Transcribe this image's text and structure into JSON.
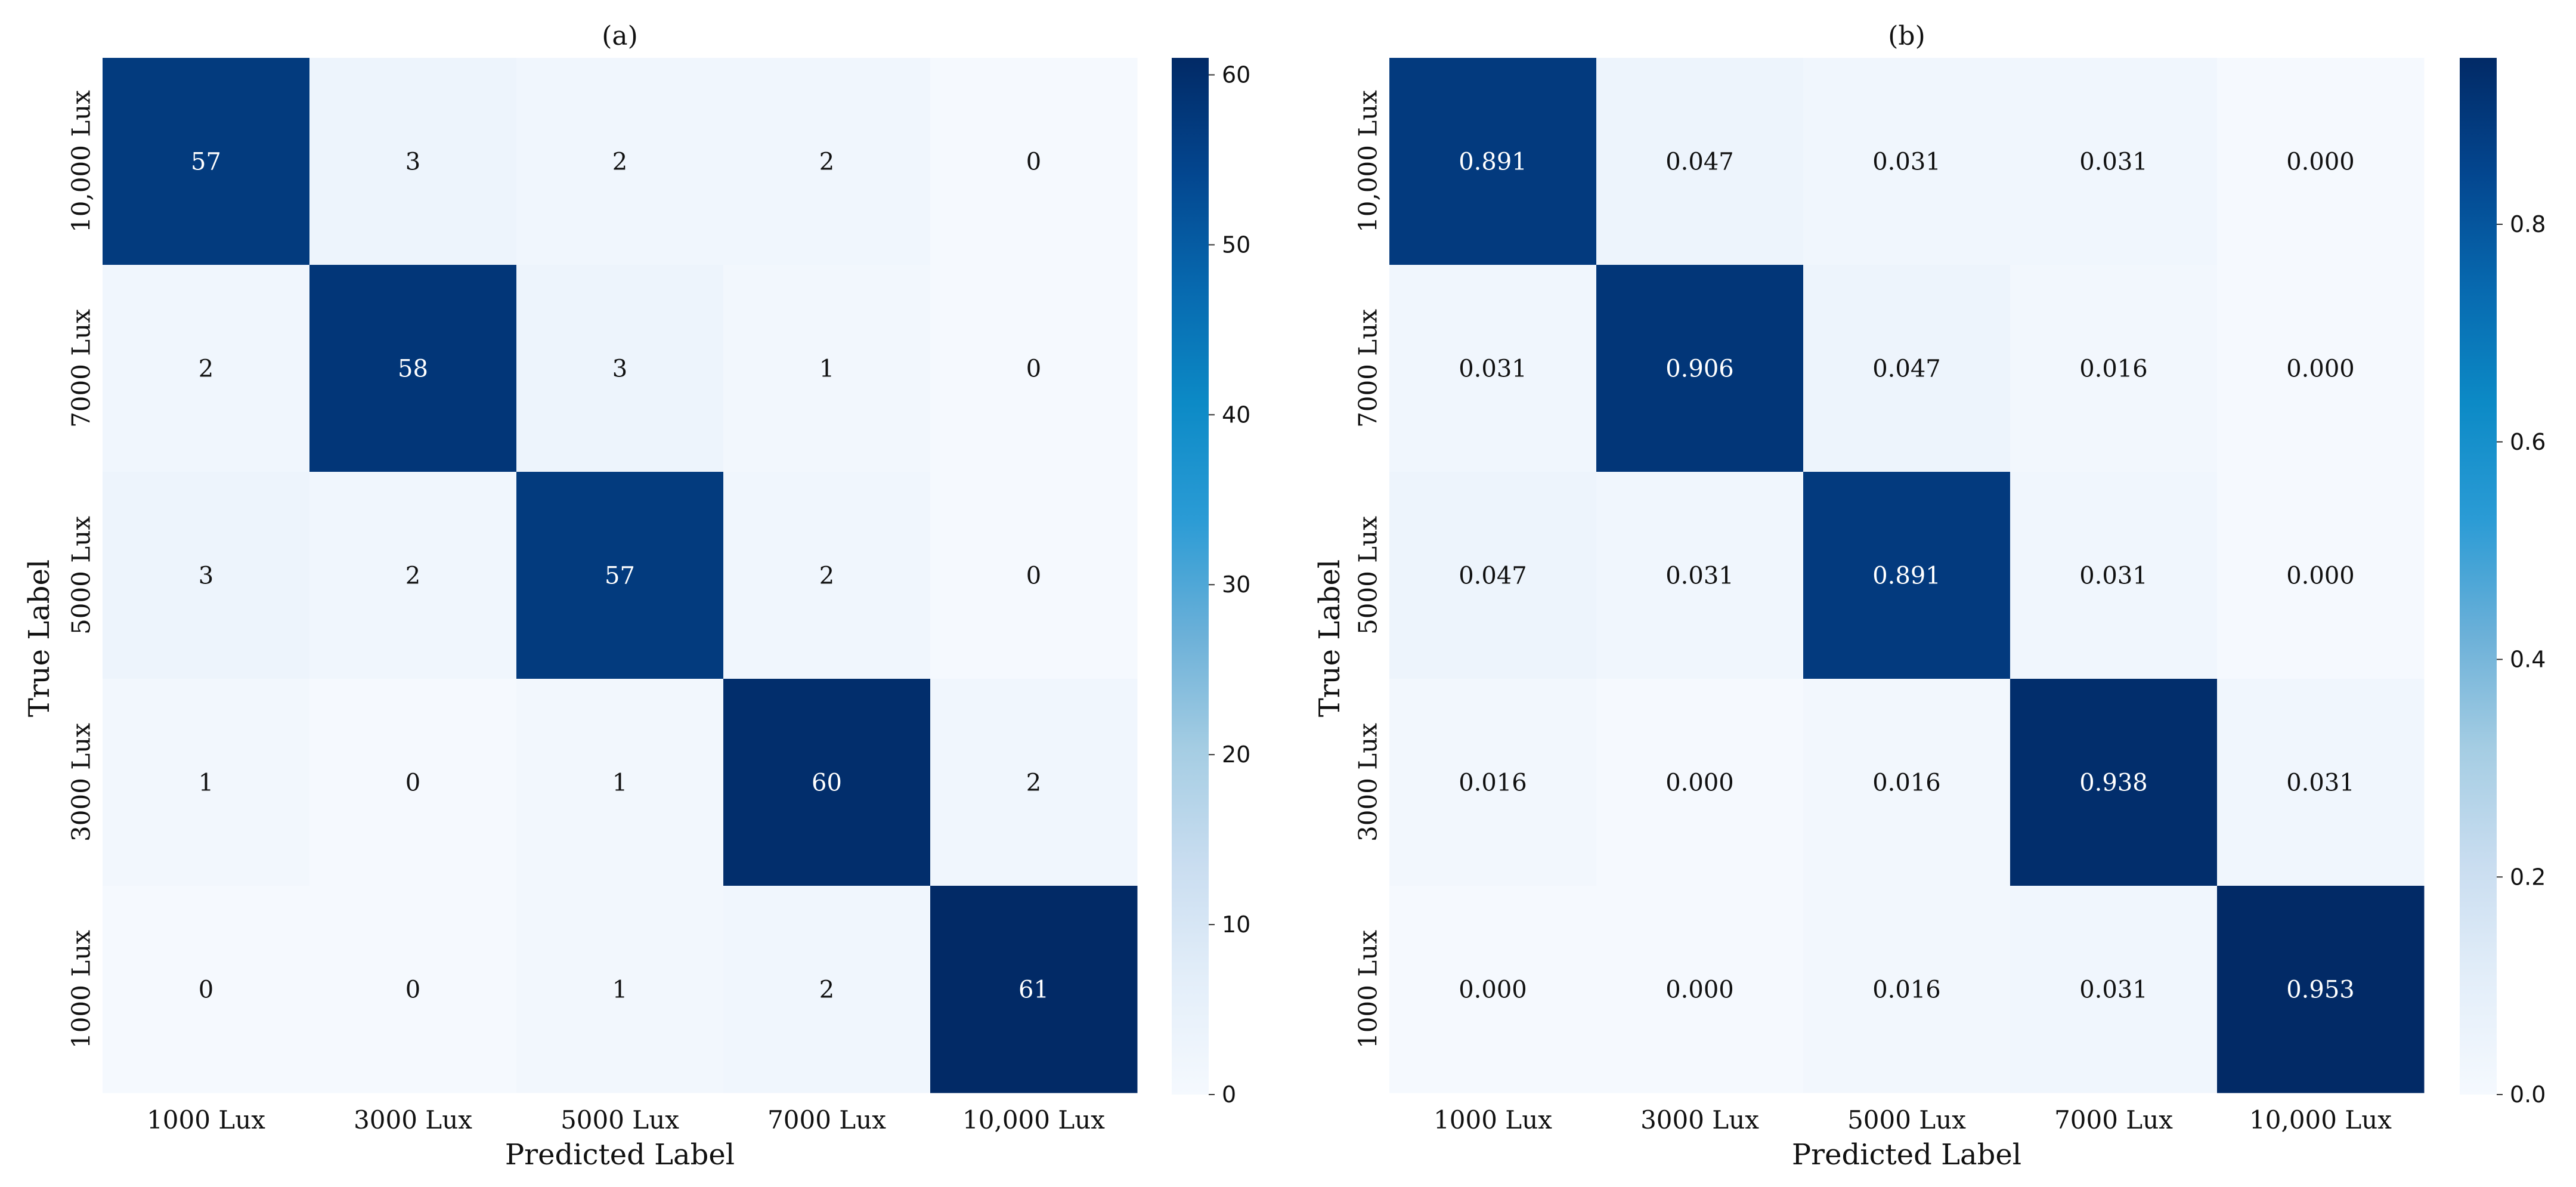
{
  "chart_data": [
    {
      "type": "heatmap",
      "title": "(a)",
      "xlabel": "Predicted Label",
      "ylabel": "True Label",
      "x_categories": [
        "1000 Lux",
        "3000 Lux",
        "5000 Lux",
        "7000 Lux",
        "10,000 Lux"
      ],
      "y_categories": [
        "10,000 Lux",
        "7000 Lux",
        "5000 Lux",
        "3000 Lux",
        "1000 Lux"
      ],
      "values": [
        [
          57,
          3,
          2,
          2,
          0
        ],
        [
          2,
          58,
          3,
          1,
          0
        ],
        [
          3,
          2,
          57,
          2,
          0
        ],
        [
          1,
          0,
          1,
          60,
          2
        ],
        [
          0,
          0,
          1,
          2,
          61
        ]
      ],
      "cell_labels": [
        [
          "57",
          "3",
          "2",
          "2",
          "0"
        ],
        [
          "2",
          "58",
          "3",
          "1",
          "0"
        ],
        [
          "3",
          "2",
          "57",
          "2",
          "0"
        ],
        [
          "1",
          "0",
          "1",
          "60",
          "2"
        ],
        [
          "0",
          "0",
          "1",
          "2",
          "61"
        ]
      ],
      "colormap": "Blues",
      "vmin": 0,
      "vmax": 61,
      "colorbar_ticks": [
        0,
        10,
        20,
        30,
        40,
        50,
        60
      ],
      "colorbar_tick_labels": [
        "0",
        "10",
        "20",
        "30",
        "40",
        "50",
        "60"
      ]
    },
    {
      "type": "heatmap",
      "title": "(b)",
      "xlabel": "Predicted Label",
      "ylabel": "True Label",
      "x_categories": [
        "1000 Lux",
        "3000 Lux",
        "5000 Lux",
        "7000 Lux",
        "10,000 Lux"
      ],
      "y_categories": [
        "10,000 Lux",
        "7000 Lux",
        "5000 Lux",
        "3000 Lux",
        "1000 Lux"
      ],
      "values": [
        [
          0.891,
          0.047,
          0.031,
          0.031,
          0.0
        ],
        [
          0.031,
          0.906,
          0.047,
          0.016,
          0.0
        ],
        [
          0.047,
          0.031,
          0.891,
          0.031,
          0.0
        ],
        [
          0.016,
          0.0,
          0.016,
          0.938,
          0.031
        ],
        [
          0.0,
          0.0,
          0.016,
          0.031,
          0.953
        ]
      ],
      "cell_labels": [
        [
          "0.891",
          "0.047",
          "0.031",
          "0.031",
          "0.000"
        ],
        [
          "0.031",
          "0.906",
          "0.047",
          "0.016",
          "0.000"
        ],
        [
          "0.047",
          "0.031",
          "0.891",
          "0.031",
          "0.000"
        ],
        [
          "0.016",
          "0.000",
          "0.016",
          "0.938",
          "0.031"
        ],
        [
          "0.000",
          "0.000",
          "0.016",
          "0.031",
          "0.953"
        ]
      ],
      "colormap": "Blues",
      "vmin": 0,
      "vmax": 0.953,
      "colorbar_ticks": [
        0,
        0.2,
        0.4,
        0.6,
        0.8
      ],
      "colorbar_tick_labels": [
        "0.0",
        "0.2",
        "0.4",
        "0.6",
        "0.8"
      ]
    }
  ],
  "colors": {
    "cmap_stops": [
      "#f5f9fe",
      "#e3eef9",
      "#c9ddf0",
      "#a5cde3",
      "#6bb0d8",
      "#2a9bd5",
      "#0c8ac6",
      "#0769af",
      "#03468f",
      "#022a66"
    ],
    "text_dark": "#111111",
    "text_light": "#ffffff"
  }
}
